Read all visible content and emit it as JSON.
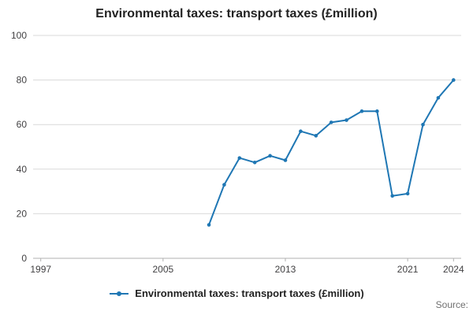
{
  "header": {
    "title": "Environmental taxes: transport taxes (£million)"
  },
  "legend": {
    "label": "Environmental taxes: transport taxes (£million)"
  },
  "footer": {
    "source": "Source:"
  },
  "chart_data": {
    "type": "line",
    "title": "Environmental taxes: transport taxes (£million)",
    "xlabel": "",
    "ylabel": "",
    "xlim": [
      1996.5,
      2024.5
    ],
    "ylim": [
      0,
      100
    ],
    "x_ticks": [
      1997,
      2005,
      2013,
      2021,
      2024
    ],
    "y_ticks": [
      0,
      20,
      40,
      60,
      80,
      100
    ],
    "grid": "horizontal",
    "legend_position": "bottom",
    "line_color": "#1f77b4",
    "grid_color": "#d9d9d9",
    "axis_color": "#b0b0b0",
    "tick_label_color": "#414042",
    "series": [
      {
        "name": "Environmental taxes: transport taxes (£million)",
        "x": [
          2008,
          2009,
          2010,
          2011,
          2012,
          2013,
          2014,
          2015,
          2016,
          2017,
          2018,
          2019,
          2020,
          2021,
          2022,
          2023,
          2024
        ],
        "values": [
          15,
          33,
          45,
          43,
          46,
          44,
          57,
          55,
          61,
          62,
          66,
          66,
          28,
          29,
          60,
          72,
          80
        ]
      }
    ]
  }
}
